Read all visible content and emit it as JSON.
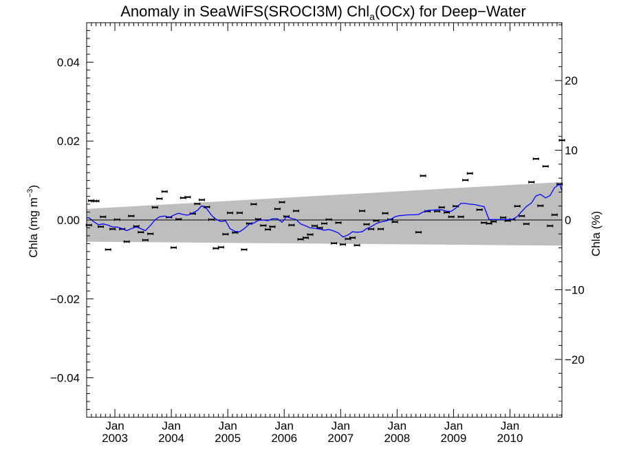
{
  "chart_data": {
    "type": "scatter",
    "title_parts": {
      "prefix": "Anomaly in SeaWiFS(SROCI3M) Chl",
      "subscript": "a",
      "suffix": "(OCx) for Deep−Water"
    },
    "ylabel_left_parts": {
      "prefix": "Chla (mg m",
      "superscript": "−3",
      "suffix": ")"
    },
    "ylabel_right": "Chla (%)",
    "xlim": [
      2002.5,
      2010.92
    ],
    "ylim": [
      -0.05,
      0.05
    ],
    "ylim_right": [
      -28.3,
      28.3
    ],
    "grid": false,
    "x_ticks": [
      {
        "value": 2003.0,
        "month": "Jan",
        "year": "2003"
      },
      {
        "value": 2004.0,
        "month": "Jan",
        "year": "2004"
      },
      {
        "value": 2005.0,
        "month": "Jan",
        "year": "2005"
      },
      {
        "value": 2006.0,
        "month": "Jan",
        "year": "2006"
      },
      {
        "value": 2007.0,
        "month": "Jan",
        "year": "2007"
      },
      {
        "value": 2008.0,
        "month": "Jan",
        "year": "2008"
      },
      {
        "value": 2009.0,
        "month": "Jan",
        "year": "2009"
      },
      {
        "value": 2010.0,
        "month": "Jan",
        "year": "2010"
      }
    ],
    "y_ticks_left": [
      {
        "value": 0.04,
        "label": "0.04"
      },
      {
        "value": 0.02,
        "label": "0.02"
      },
      {
        "value": 0.0,
        "label": "0.00"
      },
      {
        "value": -0.02,
        "label": "−0.02"
      },
      {
        "value": -0.04,
        "label": "−0.04"
      }
    ],
    "y_ticks_right": [
      {
        "value": 20,
        "label": "20"
      },
      {
        "value": 10,
        "label": "10"
      },
      {
        "value": 0,
        "label": "0"
      },
      {
        "value": -10,
        "label": "−10"
      },
      {
        "value": -20,
        "label": "−20"
      }
    ],
    "band": {
      "color": "#bebebe",
      "x": [
        2002.5,
        2010.92
      ],
      "upper": [
        0.0028,
        0.0096
      ],
      "lower": [
        -0.0055,
        -0.0065
      ]
    },
    "zero_line": 0.0,
    "series": [
      {
        "kind": "points-with-error-bars",
        "color": "#000000",
        "x": [
          2002.54,
          2002.58,
          2002.63,
          2002.67,
          2002.75,
          2002.79,
          2002.88,
          2002.96,
          2003.04,
          2003.13,
          2003.21,
          2003.29,
          2003.38,
          2003.46,
          2003.54,
          2003.63,
          2003.71,
          2003.79,
          2003.88,
          2003.96,
          2004.04,
          2004.13,
          2004.21,
          2004.29,
          2004.38,
          2004.46,
          2004.54,
          2004.63,
          2004.71,
          2004.79,
          2004.88,
          2004.96,
          2005.04,
          2005.13,
          2005.21,
          2005.29,
          2005.38,
          2005.46,
          2005.54,
          2005.63,
          2005.71,
          2005.79,
          2005.88,
          2005.96,
          2006.04,
          2006.13,
          2006.21,
          2006.29,
          2006.38,
          2006.46,
          2006.54,
          2006.63,
          2006.71,
          2006.79,
          2006.88,
          2006.96,
          2007.04,
          2007.13,
          2007.21,
          2007.29,
          2007.38,
          2007.46,
          2007.54,
          2007.63,
          2007.71,
          2007.79,
          2007.88,
          2007.96,
          2008.38,
          2008.46,
          2008.54,
          2008.71,
          2008.79,
          2008.88,
          2008.96,
          2009.04,
          2009.13,
          2009.21,
          2009.29,
          2009.46,
          2009.54,
          2009.63,
          2009.71,
          2009.88,
          2009.96,
          2010.04,
          2010.13,
          2010.21,
          2010.29,
          2010.38,
          2010.46,
          2010.54,
          2010.63,
          2010.71,
          2010.79,
          2010.88,
          2010.92
        ],
        "y": [
          -0.0013,
          0.0049,
          0.0048,
          0.0048,
          -0.0017,
          0.0008,
          -0.0075,
          -0.0023,
          0.0001,
          -0.0023,
          -0.0055,
          0.001,
          -0.0016,
          -0.0031,
          -0.0051,
          -0.0035,
          0.0032,
          0.0054,
          0.0072,
          0.0007,
          -0.007,
          0.0002,
          0.0056,
          0.0058,
          0.0016,
          0.0041,
          0.0051,
          0.0033,
          0.0001,
          -0.0072,
          -0.0069,
          -0.0036,
          0.0018,
          -0.0032,
          0.0018,
          -0.0075,
          -0.0009,
          0.004,
          0.0002,
          -0.0014,
          -0.0024,
          -0.0017,
          0.0028,
          0.0045,
          0.0009,
          -0.0013,
          0.0023,
          -0.0049,
          -0.0045,
          -0.0037,
          -0.0015,
          -0.002,
          -0.0009,
          0.0001,
          -0.0059,
          -0.0007,
          -0.0062,
          -0.0048,
          -0.0045,
          -0.0064,
          0.0023,
          -0.0011,
          -0.0023,
          -0.0002,
          -0.0023,
          0.0017,
          0.0001,
          -0.0005,
          -0.0031,
          0.0112,
          0.0022,
          0.0022,
          0.0032,
          0.0019,
          0.0008,
          0.0035,
          0.0008,
          0.0101,
          0.0118,
          0.0026,
          -0.0007,
          -0.0009,
          -0.0004,
          0.0006,
          -0.0002,
          0.0001,
          0.0035,
          0.001,
          -0.001,
          0.0096,
          0.0155,
          0.0036,
          0.0136,
          -0.0015,
          0.0013,
          0.0091,
          0.0202
        ]
      },
      {
        "kind": "line",
        "name": "",
        "color": "#0000ff",
        "x": [
          2002.5,
          2002.54,
          2002.63,
          2002.71,
          2002.79,
          2002.88,
          2002.96,
          2003.04,
          2003.13,
          2003.21,
          2003.29,
          2003.38,
          2003.46,
          2003.54,
          2003.63,
          2003.71,
          2003.79,
          2003.88,
          2003.96,
          2004.04,
          2004.13,
          2004.21,
          2004.29,
          2004.38,
          2004.46,
          2004.54,
          2004.63,
          2004.71,
          2004.79,
          2004.88,
          2004.96,
          2005.04,
          2005.13,
          2005.21,
          2005.29,
          2005.38,
          2005.46,
          2005.54,
          2005.63,
          2005.71,
          2005.79,
          2005.88,
          2005.96,
          2006.04,
          2006.13,
          2006.21,
          2006.29,
          2006.38,
          2006.46,
          2006.54,
          2006.63,
          2006.71,
          2006.79,
          2006.88,
          2006.96,
          2007.04,
          2007.13,
          2007.21,
          2007.29,
          2007.38,
          2007.46,
          2007.54,
          2007.63,
          2007.71,
          2007.79,
          2007.88,
          2007.96,
          2008.04,
          2008.13,
          2008.21,
          2008.29,
          2008.38,
          2008.46,
          2008.54,
          2008.63,
          2008.71,
          2008.79,
          2008.88,
          2008.96,
          2009.04,
          2009.13,
          2009.21,
          2009.29,
          2009.38,
          2009.46,
          2009.54,
          2009.63,
          2009.71,
          2009.79,
          2009.88,
          2009.96,
          2010.04,
          2010.13,
          2010.21,
          2010.29,
          2010.38,
          2010.46,
          2010.54,
          2010.63,
          2010.71,
          2010.79,
          2010.88,
          2010.92
        ],
        "y": [
          0.0006,
          0.0006,
          -0.0005,
          -0.0012,
          -0.001,
          -0.0013,
          -0.0018,
          -0.0018,
          -0.0022,
          -0.0027,
          -0.0022,
          -0.0018,
          -0.0022,
          -0.0027,
          -0.0014,
          0.0,
          0.0008,
          0.001,
          0.0006,
          0.0012,
          0.0017,
          0.0014,
          0.0012,
          0.0018,
          0.0024,
          0.0036,
          0.0028,
          0.0012,
          0.0002,
          -0.0004,
          -0.0002,
          -0.0022,
          -0.0029,
          -0.003,
          -0.0022,
          -0.0011,
          -0.0008,
          -0.0001,
          0.0,
          -0.0002,
          0.0003,
          0.0003,
          -0.0006,
          0.0008,
          0.0004,
          0.0001,
          -0.001,
          -0.0015,
          -0.002,
          -0.0021,
          -0.0023,
          -0.0026,
          -0.0024,
          -0.0028,
          -0.0033,
          -0.0043,
          -0.0038,
          -0.003,
          -0.0031,
          -0.003,
          -0.0022,
          -0.0017,
          -0.0009,
          -0.0005,
          -0.0003,
          0.0001,
          0.0008,
          0.0011,
          0.0012,
          0.0013,
          0.0013,
          0.0014,
          0.002,
          0.0024,
          0.0025,
          0.0026,
          0.0026,
          0.0022,
          0.0022,
          0.003,
          0.0042,
          0.0042,
          0.004,
          0.0039,
          0.0036,
          0.0034,
          0.0001,
          0.0001,
          0.0001,
          0.0001,
          0.0001,
          0.0001,
          0.0009,
          0.0022,
          0.0034,
          0.0043,
          0.0061,
          0.0065,
          0.0056,
          0.0062,
          0.0082,
          0.0091,
          0.0074
        ]
      }
    ]
  }
}
